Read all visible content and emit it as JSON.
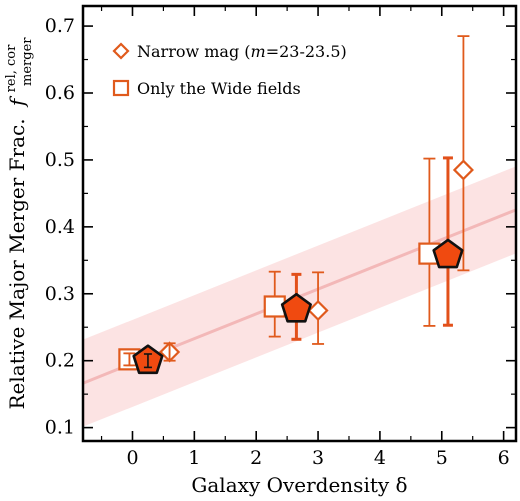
{
  "chart_data": {
    "type": "scatter",
    "xlabel": "Galaxy Overdensity δ",
    "ylabel": "Relative Major Merger Frac.",
    "ylabel_symbol": "f",
    "ylabel_sup": "rel, cor",
    "ylabel_sub": "merger",
    "xlim": [
      -0.8,
      6.2
    ],
    "ylim": [
      0.08,
      0.73
    ],
    "xticks": [
      0,
      1,
      2,
      3,
      4,
      5,
      6
    ],
    "yticks": [
      0.1,
      0.2,
      0.3,
      0.4,
      0.5,
      0.6,
      0.7
    ],
    "grid": false,
    "legend_position": "top-left",
    "colors": {
      "accent": "#e05a1c",
      "fill": "#f04a10",
      "band": "#fbdada",
      "fit_line": "#f3b8b8",
      "outline": "#111111"
    },
    "fit": {
      "slope": 0.037,
      "intercept": 0.196,
      "band_halfwidth": 0.065
    },
    "series": [
      {
        "marker": "pentagon",
        "points": [
          {
            "x": 0.25,
            "y": 0.2,
            "yerr_low": 0.01,
            "yerr_high": 0.01
          },
          {
            "x": 2.65,
            "y": 0.277,
            "yerr_low": 0.045,
            "yerr_high": 0.052
          },
          {
            "x": 5.1,
            "y": 0.358,
            "yerr_low": 0.105,
            "yerr_high": 0.145
          }
        ]
      },
      {
        "name": "Narrow mag (m=23-23.5)",
        "legend_label_parts": [
          "Narrow mag (",
          "m",
          "=23-23.5)"
        ],
        "marker": "diamond",
        "points": [
          {
            "x": 0.6,
            "y": 0.213,
            "yerr_low": 0.013,
            "yerr_high": 0.013
          },
          {
            "x": 3.0,
            "y": 0.275,
            "yerr_low": 0.05,
            "yerr_high": 0.057
          },
          {
            "x": 5.35,
            "y": 0.485,
            "yerr_low": 0.15,
            "yerr_high": 0.2
          }
        ]
      },
      {
        "name": "Only the Wide fields",
        "legend_label_parts": [
          "Only the Wide fields"
        ],
        "marker": "square",
        "points": [
          {
            "x": -0.05,
            "y": 0.202,
            "yerr_low": 0.009,
            "yerr_high": 0.009
          },
          {
            "x": 2.3,
            "y": 0.281,
            "yerr_low": 0.045,
            "yerr_high": 0.052
          },
          {
            "x": 4.8,
            "y": 0.36,
            "yerr_low": 0.108,
            "yerr_high": 0.142
          }
        ]
      }
    ]
  }
}
